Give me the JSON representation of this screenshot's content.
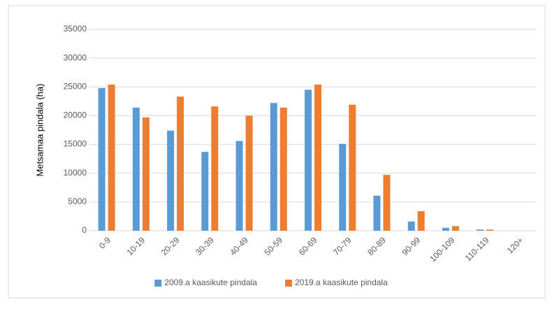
{
  "chart_data": {
    "type": "bar",
    "y_label": "Metsamaa pindala (ha)",
    "categories": [
      "0-9",
      "10-19",
      "20-29",
      "30-39",
      "40-49",
      "50-59",
      "60-69",
      "70-79",
      "80-89",
      "90-99",
      "100-109",
      "110-119",
      "120+"
    ],
    "series": [
      {
        "name": "2009.a kaasikute pindala",
        "color": "#5b9bd5",
        "values": [
          24800,
          21400,
          17400,
          13700,
          15600,
          22200,
          24500,
          15100,
          6100,
          1600,
          500,
          200,
          0
        ]
      },
      {
        "name": "2019.a kaasikute pindala",
        "color": "#ed7d31",
        "values": [
          25400,
          19700,
          23300,
          21600,
          20000,
          21400,
          25400,
          21900,
          9700,
          3400,
          800,
          200,
          0
        ]
      }
    ],
    "ylim": [
      0,
      35000
    ],
    "yticks": [
      0,
      5000,
      10000,
      15000,
      20000,
      25000,
      30000,
      35000
    ],
    "grid": true,
    "legend": "bottom"
  }
}
